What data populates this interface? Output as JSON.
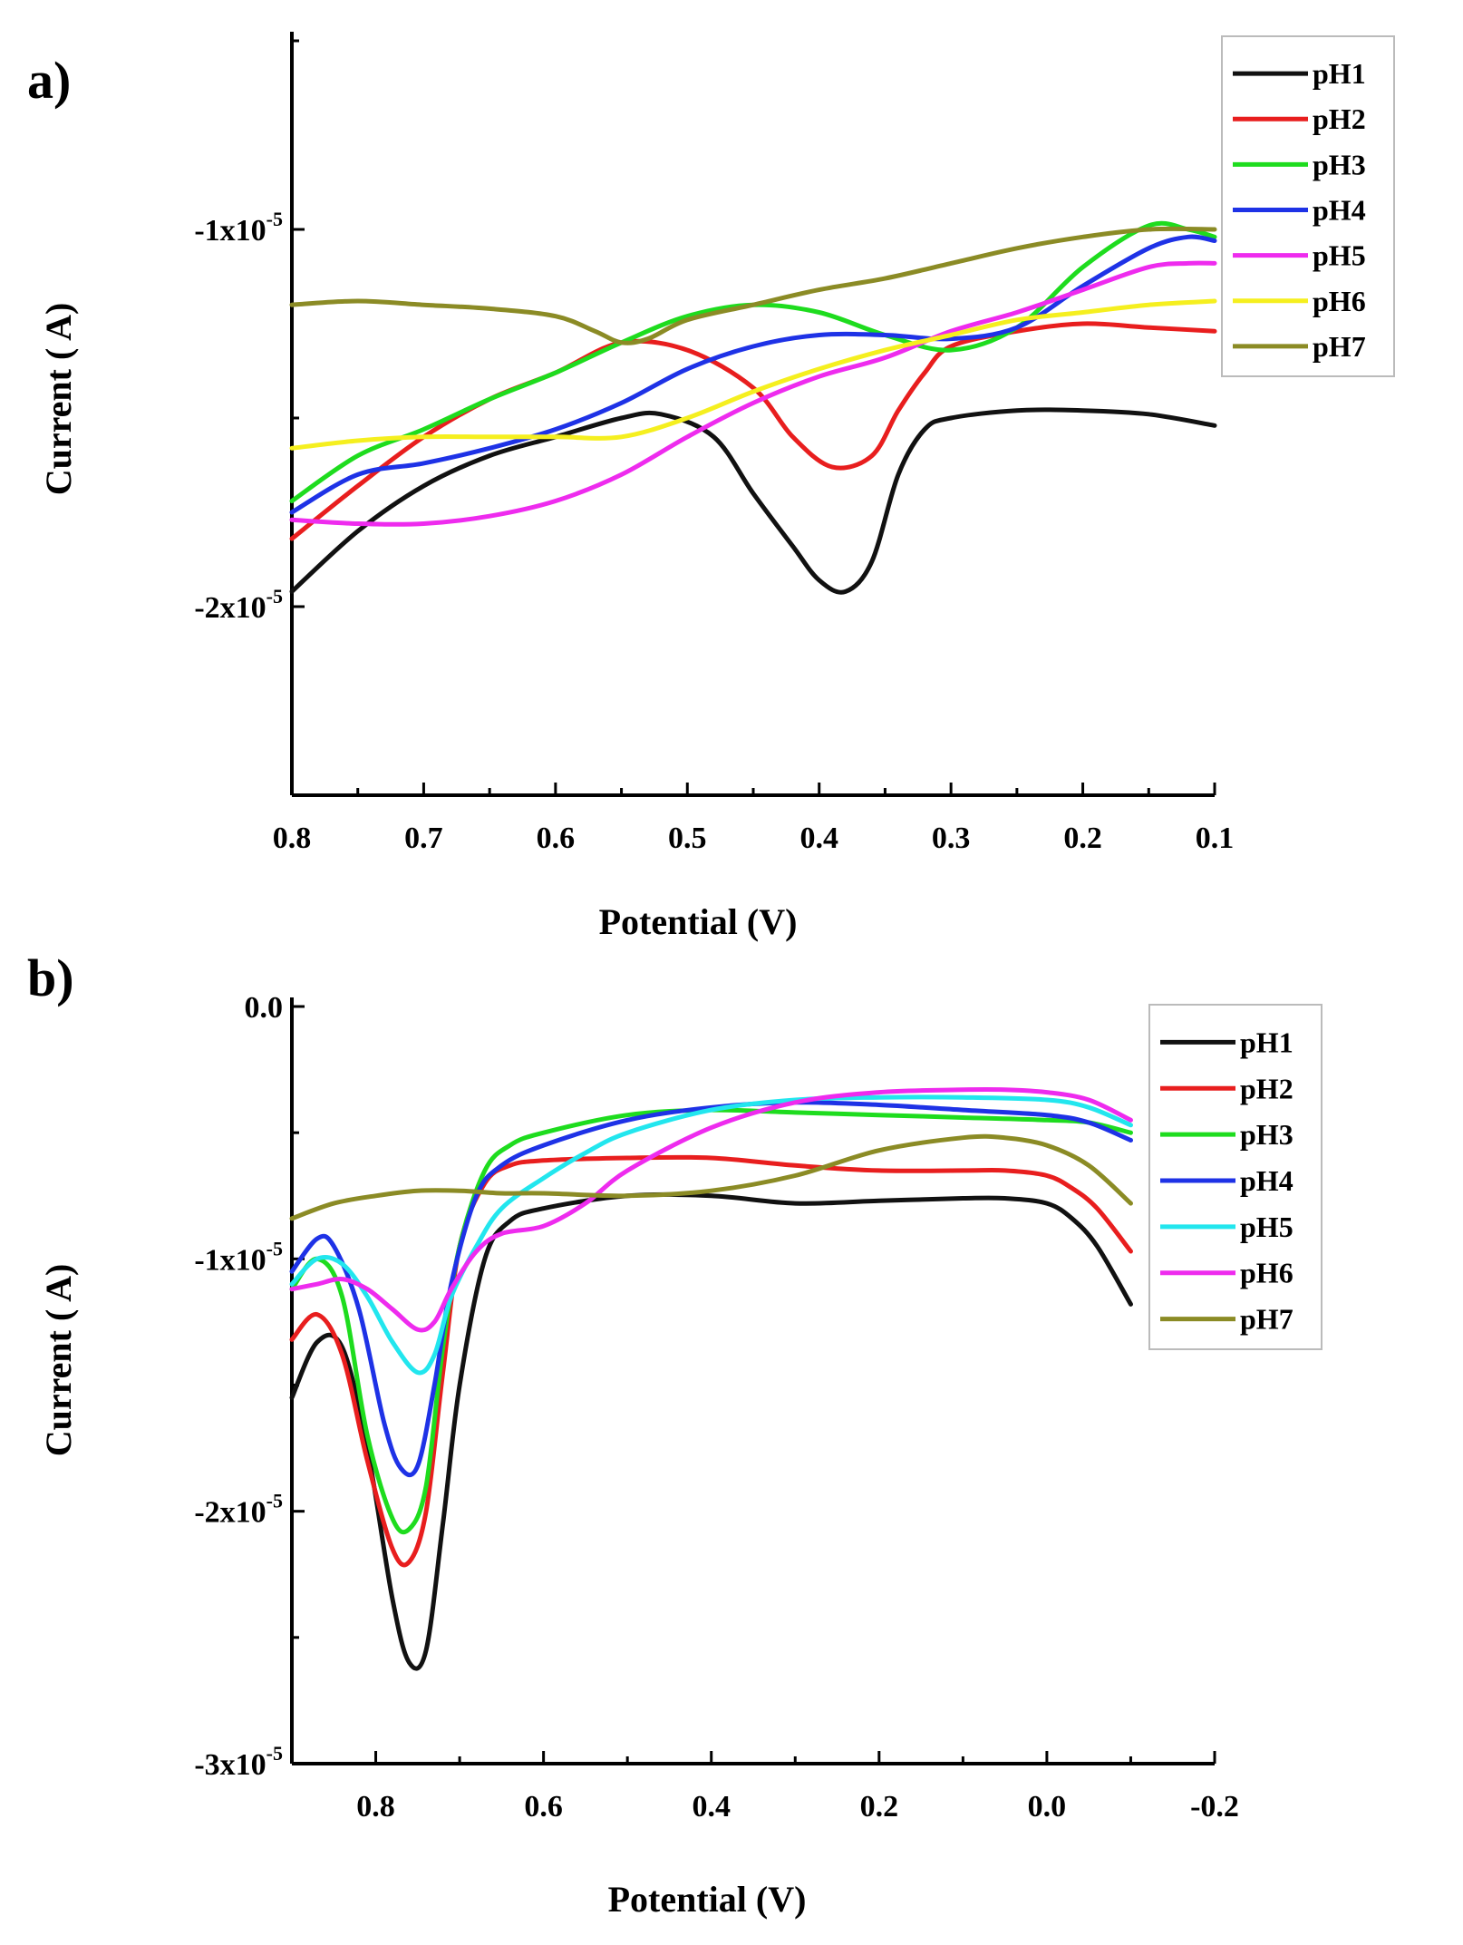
{
  "chart_data": [
    {
      "panel": "a)",
      "type": "line",
      "xlabel": "Potential (V)",
      "ylabel": "Current ( A)",
      "xlim": [
        0.8,
        0.1
      ],
      "ylim": [
        -2.5e-05,
        -5e-06
      ],
      "x_ticks": [
        0.8,
        0.7,
        0.6,
        0.5,
        0.4,
        0.3,
        0.2,
        0.1
      ],
      "x_tick_labels": [
        "0.8",
        "0.7",
        "0.6",
        "0.5",
        "0.4",
        "0.3",
        "0.2",
        "0.1"
      ],
      "y_ticks": [
        -1e-05,
        -2e-05
      ],
      "y_tick_labels": [
        {
          "mant": "-1x10",
          "exp": "-5"
        },
        {
          "mant": "-2x10",
          "exp": "-5"
        }
      ],
      "legend_position": "top-right",
      "series": [
        {
          "name": "pH1",
          "color": "#111111",
          "x": [
            0.8,
            0.75,
            0.7,
            0.65,
            0.6,
            0.55,
            0.52,
            0.48,
            0.45,
            0.42,
            0.4,
            0.38,
            0.36,
            0.34,
            0.32,
            0.3,
            0.25,
            0.2,
            0.15,
            0.1
          ],
          "y": [
            -1.96e-05,
            -1.8e-05,
            -1.68e-05,
            -1.6e-05,
            -1.55e-05,
            -1.5e-05,
            -1.49e-05,
            -1.55e-05,
            -1.7e-05,
            -1.84e-05,
            -1.93e-05,
            -1.96e-05,
            -1.88e-05,
            -1.65e-05,
            -1.53e-05,
            -1.5e-05,
            -1.48e-05,
            -1.48e-05,
            -1.49e-05,
            -1.52e-05
          ]
        },
        {
          "name": "pH2",
          "color": "#e81e1e",
          "x": [
            0.8,
            0.75,
            0.7,
            0.65,
            0.6,
            0.55,
            0.5,
            0.45,
            0.42,
            0.39,
            0.36,
            0.34,
            0.32,
            0.3,
            0.25,
            0.2,
            0.15,
            0.1
          ],
          "y": [
            -1.82e-05,
            -1.68e-05,
            -1.55e-05,
            -1.45e-05,
            -1.38e-05,
            -1.3e-05,
            -1.32e-05,
            -1.42e-05,
            -1.55e-05,
            -1.63e-05,
            -1.6e-05,
            -1.48e-05,
            -1.38e-05,
            -1.31e-05,
            -1.27e-05,
            -1.25e-05,
            -1.26e-05,
            -1.27e-05
          ]
        },
        {
          "name": "pH3",
          "color": "#1edc1e",
          "x": [
            0.8,
            0.75,
            0.7,
            0.65,
            0.6,
            0.55,
            0.5,
            0.45,
            0.4,
            0.35,
            0.3,
            0.25,
            0.2,
            0.15,
            0.12,
            0.1
          ],
          "y": [
            -1.72e-05,
            -1.6e-05,
            -1.53e-05,
            -1.45e-05,
            -1.38e-05,
            -1.3e-05,
            -1.23e-05,
            -1.2e-05,
            -1.22e-05,
            -1.28e-05,
            -1.32e-05,
            -1.26e-05,
            -1.1e-05,
            -9.9e-06,
            -1e-05,
            -1.02e-05
          ]
        },
        {
          "name": "pH4",
          "color": "#1e32e6",
          "x": [
            0.8,
            0.75,
            0.7,
            0.65,
            0.6,
            0.55,
            0.5,
            0.45,
            0.4,
            0.35,
            0.3,
            0.25,
            0.2,
            0.15,
            0.12,
            0.1
          ],
          "y": [
            -1.75e-05,
            -1.65e-05,
            -1.62e-05,
            -1.58e-05,
            -1.53e-05,
            -1.46e-05,
            -1.37e-05,
            -1.31e-05,
            -1.28e-05,
            -1.28e-05,
            -1.29e-05,
            -1.26e-05,
            -1.15e-05,
            -1.05e-05,
            -1.02e-05,
            -1.03e-05
          ]
        },
        {
          "name": "pH5",
          "color": "#ee2bee",
          "x": [
            0.8,
            0.75,
            0.7,
            0.65,
            0.6,
            0.55,
            0.5,
            0.45,
            0.4,
            0.35,
            0.3,
            0.25,
            0.2,
            0.15,
            0.12,
            0.1
          ],
          "y": [
            -1.77e-05,
            -1.78e-05,
            -1.78e-05,
            -1.76e-05,
            -1.72e-05,
            -1.65e-05,
            -1.55e-05,
            -1.46e-05,
            -1.39e-05,
            -1.34e-05,
            -1.27e-05,
            -1.22e-05,
            -1.16e-05,
            -1.1e-05,
            -1.09e-05,
            -1.09e-05
          ]
        },
        {
          "name": "pH6",
          "color": "#f5ef1f",
          "x": [
            0.8,
            0.75,
            0.7,
            0.65,
            0.6,
            0.55,
            0.5,
            0.45,
            0.4,
            0.35,
            0.3,
            0.25,
            0.2,
            0.15,
            0.1
          ],
          "y": [
            -1.58e-05,
            -1.56e-05,
            -1.55e-05,
            -1.55e-05,
            -1.55e-05,
            -1.55e-05,
            -1.5e-05,
            -1.43e-05,
            -1.37e-05,
            -1.32e-05,
            -1.28e-05,
            -1.24e-05,
            -1.22e-05,
            -1.2e-05,
            -1.19e-05
          ]
        },
        {
          "name": "pH7",
          "color": "#8b8b25",
          "x": [
            0.8,
            0.75,
            0.7,
            0.65,
            0.6,
            0.57,
            0.55,
            0.53,
            0.5,
            0.45,
            0.4,
            0.35,
            0.3,
            0.25,
            0.2,
            0.15,
            0.1
          ],
          "y": [
            -1.2e-05,
            -1.19e-05,
            -1.2e-05,
            -1.21e-05,
            -1.23e-05,
            -1.27e-05,
            -1.3e-05,
            -1.29e-05,
            -1.24e-05,
            -1.2e-05,
            -1.16e-05,
            -1.13e-05,
            -1.09e-05,
            -1.05e-05,
            -1.02e-05,
            -1e-05,
            -1e-05
          ]
        }
      ]
    },
    {
      "panel": "b)",
      "type": "line",
      "xlabel": "Potential (V)",
      "ylabel": "Current ( A)",
      "xlim": [
        0.9,
        -0.2
      ],
      "ylim": [
        -3e-05,
        0
      ],
      "x_ticks": [
        0.8,
        0.6,
        0.4,
        0.2,
        0.0,
        -0.2
      ],
      "x_tick_labels": [
        "0.8",
        "0.6",
        "0.4",
        "0.2",
        "0.0",
        "-0.2"
      ],
      "y_ticks": [
        0,
        -1e-05,
        -2e-05,
        -3e-05
      ],
      "y_tick_labels": [
        {
          "mant": "0.0",
          "exp": ""
        },
        {
          "mant": "-1x10",
          "exp": "-5"
        },
        {
          "mant": "-2x10",
          "exp": "-5"
        },
        {
          "mant": "-3x10",
          "exp": "-5"
        }
      ],
      "legend_position": "top-right",
      "series": [
        {
          "name": "pH1",
          "color": "#111111",
          "x": [
            0.9,
            0.87,
            0.84,
            0.81,
            0.78,
            0.76,
            0.74,
            0.72,
            0.7,
            0.67,
            0.64,
            0.6,
            0.5,
            0.4,
            0.3,
            0.2,
            0.1,
            0.05,
            0.0,
            -0.03,
            -0.06,
            -0.1
          ],
          "y": [
            -1.55e-05,
            -1.33e-05,
            -1.35e-05,
            -1.75e-05,
            -2.35e-05,
            -2.6e-05,
            -2.55e-05,
            -2.05e-05,
            -1.5e-05,
            -1e-05,
            -8.5e-06,
            -8e-06,
            -7.5e-06,
            -7.5e-06,
            -7.8e-06,
            -7.7e-06,
            -7.6e-06,
            -7.6e-06,
            -7.8e-06,
            -8.4e-06,
            -9.5e-06,
            -1.18e-05
          ]
        },
        {
          "name": "pH2",
          "color": "#e81e1e",
          "x": [
            0.9,
            0.87,
            0.84,
            0.81,
            0.78,
            0.76,
            0.74,
            0.72,
            0.7,
            0.67,
            0.64,
            0.6,
            0.5,
            0.4,
            0.3,
            0.2,
            0.1,
            0.05,
            0.0,
            -0.03,
            -0.06,
            -0.1
          ],
          "y": [
            -1.32e-05,
            -1.22e-05,
            -1.38e-05,
            -1.8e-05,
            -2.15e-05,
            -2.2e-05,
            -2e-05,
            -1.45e-05,
            -9.5e-06,
            -7e-06,
            -6.3e-06,
            -6.1e-06,
            -6e-06,
            -6e-06,
            -6.3e-06,
            -6.5e-06,
            -6.5e-06,
            -6.5e-06,
            -6.7e-06,
            -7.2e-06,
            -8e-06,
            -9.7e-06
          ]
        },
        {
          "name": "pH3",
          "color": "#1edc1e",
          "x": [
            0.9,
            0.87,
            0.84,
            0.81,
            0.78,
            0.76,
            0.74,
            0.72,
            0.7,
            0.67,
            0.64,
            0.6,
            0.5,
            0.4,
            0.3,
            0.2,
            0.1,
            0.0,
            -0.05,
            -0.1
          ],
          "y": [
            -1.12e-05,
            -1e-05,
            -1.15e-05,
            -1.7e-05,
            -2.03e-05,
            -2.07e-05,
            -1.9e-05,
            -1.35e-05,
            -9.5e-06,
            -6.5e-06,
            -5.5e-06,
            -5e-06,
            -4.3e-06,
            -4.1e-06,
            -4.2e-06,
            -4.3e-06,
            -4.4e-06,
            -4.5e-06,
            -4.6e-06,
            -5e-06
          ]
        },
        {
          "name": "pH4",
          "color": "#1e32e6",
          "x": [
            0.9,
            0.87,
            0.85,
            0.82,
            0.79,
            0.77,
            0.75,
            0.73,
            0.71,
            0.68,
            0.65,
            0.6,
            0.5,
            0.4,
            0.3,
            0.2,
            0.1,
            0.0,
            -0.05,
            -0.1
          ],
          "y": [
            -1.05e-05,
            -9.2e-06,
            -9.5e-06,
            -1.2e-05,
            -1.65e-05,
            -1.83e-05,
            -1.82e-05,
            -1.5e-05,
            -1.1e-05,
            -7.5e-06,
            -6.3e-06,
            -5.5e-06,
            -4.5e-06,
            -4e-06,
            -3.8e-06,
            -3.9e-06,
            -4.1e-06,
            -4.3e-06,
            -4.6e-06,
            -5.3e-06
          ]
        },
        {
          "name": "pH5",
          "color": "#22e6ee",
          "x": [
            0.9,
            0.87,
            0.84,
            0.81,
            0.78,
            0.75,
            0.73,
            0.71,
            0.68,
            0.65,
            0.6,
            0.55,
            0.5,
            0.4,
            0.3,
            0.2,
            0.1,
            0.0,
            -0.05,
            -0.1
          ],
          "y": [
            -1.1e-05,
            -1e-05,
            -1.02e-05,
            -1.15e-05,
            -1.33e-05,
            -1.45e-05,
            -1.38e-05,
            -1.15e-05,
            -9.5e-06,
            -8e-06,
            -6.8e-06,
            -5.8e-06,
            -5e-06,
            -4.1e-06,
            -3.7e-06,
            -3.6e-06,
            -3.6e-06,
            -3.7e-06,
            -4e-06,
            -4.7e-06
          ]
        },
        {
          "name": "pH6",
          "color": "#ee2bee",
          "x": [
            0.9,
            0.87,
            0.84,
            0.81,
            0.78,
            0.75,
            0.73,
            0.71,
            0.68,
            0.65,
            0.6,
            0.55,
            0.5,
            0.4,
            0.3,
            0.2,
            0.1,
            0.05,
            0.0,
            -0.05,
            -0.1
          ],
          "y": [
            -1.12e-05,
            -1.1e-05,
            -1.08e-05,
            -1.12e-05,
            -1.2e-05,
            -1.28e-05,
            -1.25e-05,
            -1.12e-05,
            -9.7e-06,
            -9e-06,
            -8.7e-06,
            -7.8e-06,
            -6.5e-06,
            -4.8e-06,
            -3.8e-06,
            -3.4e-06,
            -3.3e-06,
            -3.3e-06,
            -3.4e-06,
            -3.7e-06,
            -4.5e-06
          ]
        },
        {
          "name": "pH7",
          "color": "#8b8b25",
          "x": [
            0.9,
            0.85,
            0.8,
            0.75,
            0.7,
            0.65,
            0.6,
            0.5,
            0.4,
            0.3,
            0.2,
            0.1,
            0.05,
            0.0,
            -0.05,
            -0.1
          ],
          "y": [
            -8.4e-06,
            -7.8e-06,
            -7.5e-06,
            -7.3e-06,
            -7.3e-06,
            -7.4e-06,
            -7.4e-06,
            -7.5e-06,
            -7.3e-06,
            -6.7e-06,
            -5.7e-06,
            -5.2e-06,
            -5.2e-06,
            -5.5e-06,
            -6.3e-06,
            -7.8e-06
          ]
        }
      ]
    }
  ]
}
